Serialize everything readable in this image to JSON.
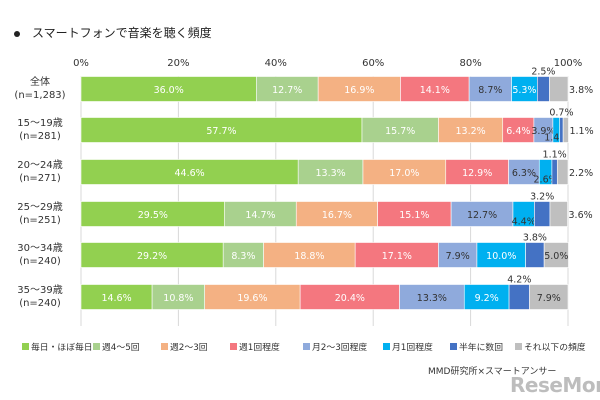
{
  "title": "スマートフォンで音楽を聴く頻度",
  "source": "MMD研究所×スマートアンサー",
  "watermark": "ReseMom",
  "chart_data": {
    "type": "bar",
    "orientation": "horizontal",
    "stacked": true,
    "xlim": [
      0,
      100
    ],
    "x_ticks": [
      "0%",
      "20%",
      "40%",
      "60%",
      "80%",
      "100%"
    ],
    "grid": true,
    "legend_position": "bottom",
    "categories": [
      [
        "全体",
        "(n=1,283)"
      ],
      [
        "15～19歳",
        "(n=281)"
      ],
      [
        "20～24歳",
        "(n=271)"
      ],
      [
        "25～29歳",
        "(n=251)"
      ],
      [
        "30～34歳",
        "(n=240)"
      ],
      [
        "35～39歳",
        "(n=240)"
      ]
    ],
    "series": [
      {
        "name": "毎日・ほぼ毎日",
        "color": "#92d050",
        "values": [
          36.0,
          57.7,
          44.6,
          29.5,
          29.2,
          14.6
        ]
      },
      {
        "name": "週4～5回",
        "color": "#a9d18e",
        "values": [
          12.7,
          15.7,
          13.3,
          14.7,
          8.3,
          10.8
        ]
      },
      {
        "name": "週2～3回",
        "color": "#f4b183",
        "values": [
          16.9,
          13.2,
          17.0,
          16.7,
          18.8,
          19.6
        ]
      },
      {
        "name": "週1回程度",
        "color": "#f4777f",
        "values": [
          14.1,
          6.4,
          12.9,
          15.1,
          17.1,
          20.4
        ]
      },
      {
        "name": "月2～3回程度",
        "color": "#8faadc",
        "values": [
          8.7,
          3.9,
          6.3,
          12.7,
          7.9,
          13.3
        ]
      },
      {
        "name": "月1回程度",
        "color": "#00b0f0",
        "values": [
          5.3,
          1.4,
          2.6,
          4.4,
          10.0,
          9.2
        ]
      },
      {
        "name": "半年に数回",
        "color": "#4472c4",
        "values": [
          2.5,
          0.7,
          1.1,
          3.2,
          3.8,
          4.2
        ]
      },
      {
        "name": "それ以下の頻度",
        "color": "#bfbfbf",
        "values": [
          3.8,
          1.1,
          2.2,
          3.6,
          5.0,
          7.9
        ]
      }
    ],
    "data_labels": [
      [
        "36.0%",
        "12.7%",
        "16.9%",
        "14.1%",
        "8.7%",
        "5.3%",
        "2.5%",
        "3.8%"
      ],
      [
        "57.7%",
        "15.7%",
        "13.2%",
        "6.4%",
        "3.9%",
        "1.4%",
        "0.7%",
        "1.1%"
      ],
      [
        "44.6%",
        "13.3%",
        "17.0%",
        "12.9%",
        "6.3%",
        "2.6%",
        "1.1%",
        "2.2%"
      ],
      [
        "29.5%",
        "14.7%",
        "16.7%",
        "15.1%",
        "12.7%",
        "4.4%",
        "3.2%",
        "3.6%"
      ],
      [
        "29.2%",
        "8.3%",
        "18.8%",
        "17.1%",
        "7.9%",
        "10.0%",
        "3.8%",
        "5.0%"
      ],
      [
        "14.6%",
        "10.8%",
        "19.6%",
        "20.4%",
        "13.3%",
        "9.2%",
        "4.2%",
        "7.9%"
      ]
    ]
  }
}
